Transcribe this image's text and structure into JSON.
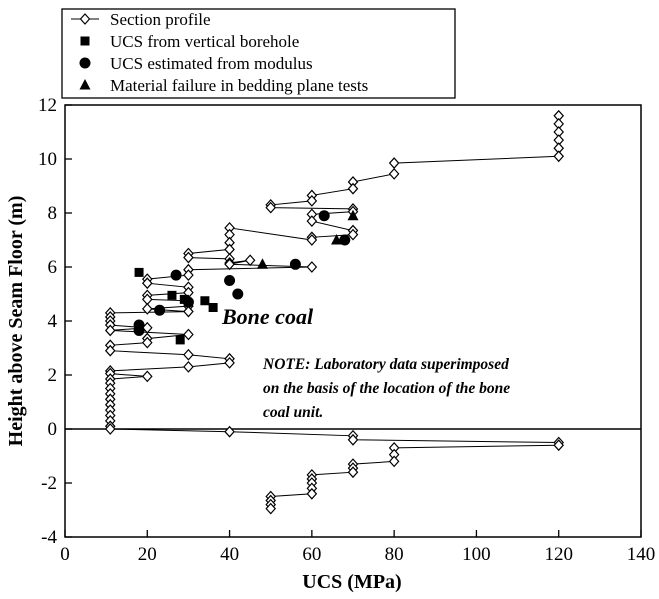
{
  "chart_data": {
    "type": "scatter",
    "title": "",
    "xlabel": "UCS (MPa)",
    "ylabel": "Height above Seam Floor (m)",
    "xlim": [
      0,
      140
    ],
    "ylim": [
      -4,
      12
    ],
    "xticks": [
      0,
      20,
      40,
      60,
      80,
      100,
      120,
      140
    ],
    "yticks": [
      -4,
      -2,
      0,
      2,
      4,
      6,
      8,
      10,
      12
    ],
    "grid": false,
    "legend_position": "top-left",
    "series": [
      {
        "name": "Section profile",
        "marker": "diamond-open",
        "connected": true,
        "points": [
          [
            120,
            11.6
          ],
          [
            120,
            11.3
          ],
          [
            120,
            11.0
          ],
          [
            120,
            10.7
          ],
          [
            120,
            10.4
          ],
          [
            120,
            10.1
          ],
          [
            80,
            9.85
          ],
          [
            80,
            9.45
          ],
          [
            70,
            9.15
          ],
          [
            70,
            8.9
          ],
          [
            60,
            8.65
          ],
          [
            60,
            8.45
          ],
          [
            50,
            8.3
          ],
          [
            50,
            8.2
          ],
          [
            70,
            8.15
          ],
          [
            70,
            8.05
          ],
          [
            60,
            7.95
          ],
          [
            60,
            7.7
          ],
          [
            70,
            7.35
          ],
          [
            70,
            7.2
          ],
          [
            60,
            7.1
          ],
          [
            60,
            7.0
          ],
          [
            40,
            7.45
          ],
          [
            40,
            7.2
          ],
          [
            40,
            6.9
          ],
          [
            40,
            6.65
          ],
          [
            30,
            6.5
          ],
          [
            30,
            6.35
          ],
          [
            40,
            6.3
          ],
          [
            40,
            6.15
          ],
          [
            45,
            6.25
          ],
          [
            40,
            6.1
          ],
          [
            60,
            6.0
          ],
          [
            30,
            5.9
          ],
          [
            30,
            5.7
          ],
          [
            20,
            5.55
          ],
          [
            20,
            5.4
          ],
          [
            30,
            5.25
          ],
          [
            30,
            5.05
          ],
          [
            20,
            4.95
          ],
          [
            20,
            4.8
          ],
          [
            30,
            4.75
          ],
          [
            30,
            4.55
          ],
          [
            20,
            4.45
          ],
          [
            30,
            4.35
          ],
          [
            11,
            4.3
          ],
          [
            11,
            4.15
          ],
          [
            11,
            4.0
          ],
          [
            11,
            3.85
          ],
          [
            20,
            3.75
          ],
          [
            11,
            3.65
          ],
          [
            30,
            3.5
          ],
          [
            20,
            3.35
          ],
          [
            20,
            3.2
          ],
          [
            11,
            3.1
          ],
          [
            11,
            2.9
          ],
          [
            30,
            2.75
          ],
          [
            40,
            2.6
          ],
          [
            40,
            2.45
          ],
          [
            30,
            2.3
          ],
          [
            11,
            2.15
          ],
          [
            11,
            2.05
          ],
          [
            20,
            1.95
          ],
          [
            11,
            1.85
          ],
          [
            11,
            1.7
          ],
          [
            11,
            1.5
          ],
          [
            11,
            1.3
          ],
          [
            11,
            1.1
          ],
          [
            11,
            0.9
          ],
          [
            11,
            0.7
          ],
          [
            11,
            0.5
          ],
          [
            11,
            0.3
          ],
          [
            11,
            0.1
          ],
          [
            11,
            0.0
          ],
          [
            40,
            -0.1
          ],
          [
            70,
            -0.25
          ],
          [
            70,
            -0.4
          ],
          [
            120,
            -0.5
          ],
          [
            120,
            -0.6
          ],
          [
            80,
            -0.7
          ],
          [
            80,
            -0.95
          ],
          [
            80,
            -1.2
          ],
          [
            70,
            -1.3
          ],
          [
            70,
            -1.45
          ],
          [
            70,
            -1.6
          ],
          [
            60,
            -1.7
          ],
          [
            60,
            -1.85
          ],
          [
            60,
            -2.0
          ],
          [
            60,
            -2.2
          ],
          [
            60,
            -2.4
          ],
          [
            50,
            -2.5
          ],
          [
            50,
            -2.65
          ],
          [
            50,
            -2.8
          ],
          [
            50,
            -2.95
          ]
        ]
      },
      {
        "name": "UCS from vertical borehole",
        "marker": "square-filled",
        "points": [
          [
            18,
            5.8
          ],
          [
            26,
            4.95
          ],
          [
            29,
            4.8
          ],
          [
            34,
            4.75
          ],
          [
            36,
            4.5
          ],
          [
            28,
            3.3
          ]
        ]
      },
      {
        "name": "UCS estimated from modulus",
        "marker": "circle-filled",
        "points": [
          [
            27,
            5.7
          ],
          [
            40,
            5.5
          ],
          [
            42,
            5.0
          ],
          [
            30,
            4.7
          ],
          [
            23,
            4.4
          ],
          [
            18,
            3.85
          ],
          [
            18,
            3.65
          ],
          [
            56,
            6.1
          ],
          [
            63,
            7.9
          ],
          [
            68,
            7.0
          ]
        ]
      },
      {
        "name": "Material failure in bedding plane tests",
        "marker": "triangle-filled",
        "points": [
          [
            48,
            6.1
          ],
          [
            66,
            7.0
          ],
          [
            70,
            7.9
          ]
        ]
      }
    ],
    "annotations": [
      "Bone coal",
      "NOTE:  Laboratory data superimposed",
      "on the basis of the location of the bone",
      "coal unit."
    ]
  }
}
